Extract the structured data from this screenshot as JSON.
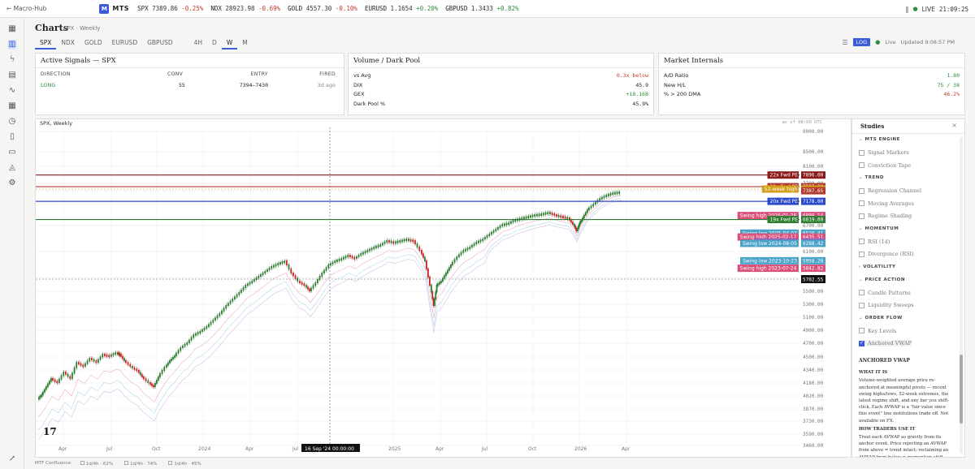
{
  "topbar": {
    "back": "← Macro-Hub",
    "logo": "M",
    "brand": "MTS",
    "tickers": [
      {
        "sym": "SPX",
        "price": "7389.86",
        "chg": "-0.25%",
        "dir": "neg"
      },
      {
        "sym": "NDX",
        "price": "28923.98",
        "chg": "-0.69%",
        "dir": "neg"
      },
      {
        "sym": "GOLD",
        "price": "4557.30",
        "chg": "-0.10%",
        "dir": "neg"
      },
      {
        "sym": "EURUSD",
        "price": "1.1654",
        "chg": "+0.20%",
        "dir": "pos"
      },
      {
        "sym": "GBPUSD",
        "price": "1.3433",
        "chg": "+0.82%",
        "dir": "pos"
      }
    ],
    "pause": "‖",
    "live": "LIVE",
    "time": "21:09:25"
  },
  "header": {
    "title": "Charts",
    "subtitle": "SPX · Weekly",
    "symbols": [
      "SPX",
      "NDX",
      "GOLD",
      "EURUSD",
      "GBPUSD"
    ],
    "timeframes": [
      "4H",
      "D",
      "W",
      "M"
    ],
    "active_symbol": "SPX",
    "active_tf": "W",
    "menu": "☰",
    "log": "LOG",
    "live": "Live",
    "updated": "Updated 9:08:57 PM"
  },
  "signals": {
    "title": "Active Signals — SPX",
    "columns": [
      "DIRECTION",
      "CONV",
      "ENTRY",
      "FIRED"
    ],
    "row": {
      "direction": "LONG",
      "conv": "55",
      "entry": "7394–7430",
      "fired": "3d ago"
    }
  },
  "volume": {
    "title": "Volume / Dark Pool",
    "rows": [
      {
        "k": "vs Avg",
        "v": "0.3x below",
        "color": "#c0392b"
      },
      {
        "k": "DIX",
        "v": "45.9",
        "color": "#222222"
      },
      {
        "k": "GEX",
        "v": "+18.16B",
        "color": "#2e8b3a"
      },
      {
        "k": "Dark Pool %",
        "v": "45.9%",
        "color": "#222222"
      }
    ]
  },
  "internals": {
    "title": "Market Internals",
    "rows": [
      {
        "k": "A/D Ratio",
        "v": "1.80",
        "color": "#2e8b3a"
      },
      {
        "k": "New H/L",
        "v": "75 / 38",
        "color": "#2e8b3a"
      },
      {
        "k": "% > 200 DMA",
        "v": "46.2%",
        "color": "#c0392b"
      }
    ]
  },
  "chart": {
    "label": "SPX, Weekly",
    "utc": "as of 08:00 UTC",
    "watermark": "17",
    "crosshair_date": "16 Sep '24",
    "crosshair_time": "00:00:00",
    "crosshair_price": "5702.55",
    "y_ticks": [
      "9000.00",
      "8500.00",
      "8100.00",
      "7700.00",
      "6700.00",
      "6100.00",
      "5700.00",
      "5500.00",
      "5300.00",
      "5100.00",
      "4900.00",
      "4700.00",
      "4500.00",
      "4340.00",
      "4180.00",
      "4020.00",
      "3870.00",
      "3730.00",
      "3590.00",
      "3460.00"
    ],
    "x_ticks": [
      "Apr",
      "Jul",
      "Oct",
      "2024",
      "Apr",
      "Jul",
      "2025",
      "Apr",
      "Jul",
      "Oct",
      "2026",
      "Apr"
    ],
    "levels": [
      {
        "label": "22x Fwd PE",
        "value": "7896.00",
        "color": "#8b1a1a"
      },
      {
        "label": "21x Fwd PE",
        "value": "7537.00",
        "color": "#b03a2e"
      },
      {
        "label": "52-week high",
        "value": "7420.10",
        "color": "#d4a017"
      },
      {
        "label": "",
        "value": "7387.65",
        "color": "#b03a2e"
      },
      {
        "label": "20x Fwd PE",
        "value": "7178.00",
        "color": "#2b4acb"
      },
      {
        "label": "Swing high 2026-01-26",
        "value": "6898.14",
        "color": "#d9507a"
      },
      {
        "label": "19x Fwd PE",
        "value": "6819.00",
        "color": "#2e7d32"
      },
      {
        "label": "Swing low 2025-04-07",
        "value": "6526.41",
        "color": "#4aa3c8"
      },
      {
        "label": "Swing high 2025-02-17",
        "value": "6435.51",
        "color": "#d9507a"
      },
      {
        "label": "Regime → choppy",
        "value": "6321.36",
        "color": "#9b59b6"
      },
      {
        "label": "Swing low 2024-08-05",
        "value": "6288.42",
        "color": "#4aa3c8"
      },
      {
        "label": "Swing low 2023-10-23",
        "value": "5958.28",
        "color": "#4aa3c8"
      },
      {
        "label": "Swing high 2023-07-24",
        "value": "5842.82",
        "color": "#d9507a"
      }
    ]
  },
  "studies": {
    "title": "Studies",
    "close": "×",
    "sections": [
      {
        "name": "MTS ENGINE",
        "items": [
          "Signal Markers",
          "Conviction Tape"
        ]
      },
      {
        "name": "TREND",
        "items": [
          "Regression Channel",
          "Moving Averages",
          "Regime Shading"
        ]
      },
      {
        "name": "MOMENTUM",
        "items": [
          "RSI (14)",
          "Divergence (RSI)"
        ]
      },
      {
        "name": "VOLATILITY",
        "items": []
      },
      {
        "name": "PRICE ACTION",
        "items": [
          "Candle Patterns",
          "Liquidity Sweeps"
        ]
      },
      {
        "name": "ORDER FLOW",
        "items": [
          "Key Levels",
          "Anchored VWAP"
        ]
      }
    ],
    "checked": "Anchored VWAP",
    "explain": {
      "title": "ANCHORED VWAP",
      "what_h": "WHAT IT IS",
      "what": "Volume-weighted average price re-anchored at meaningful pivots — recent swing highs/lows, 52-week extremes, the latest regime shift, and any bar you shift-click. Each AVWAP is a \"fair value since this event\" line institutions trade off. Not available on FX.",
      "how_h": "HOW TRADERS USE IT",
      "how": "Treat each AVWAP as gravity from its anchor event. Price rejecting an AVWAP from above = trend intact; reclaiming an AVWAP from below = momentum shift. The 52-week-low AVWAP is the single most-watched line by long-only"
    }
  },
  "bottom": {
    "label": "MTF Confluence:",
    "items": [
      "1d/4h · 62%",
      "1d/4h · 74%",
      "1d/4h · 45%"
    ]
  }
}
